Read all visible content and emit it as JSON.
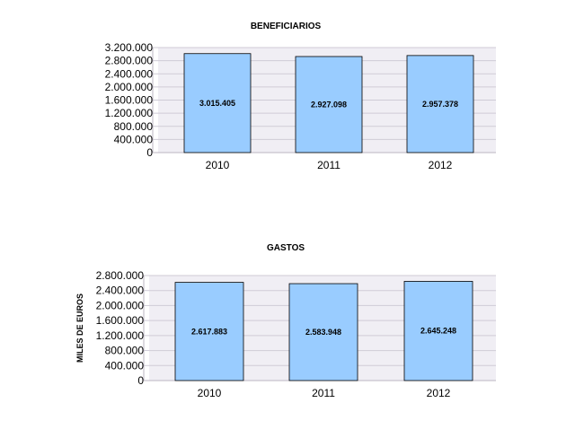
{
  "chart_data": [
    {
      "type": "bar",
      "title": "BENEFICIARIOS",
      "xlabel": "",
      "ylabel": "",
      "categories": [
        "2010",
        "2011",
        "2012"
      ],
      "values": [
        3015405,
        2927098,
        2957378
      ],
      "data_labels": [
        "3.015.405",
        "2.927.098",
        "2.957.378"
      ],
      "yticks": [
        "0",
        "400.000",
        "800.000",
        "1.200.000",
        "1.600.000",
        "2.000.000",
        "2.400.000",
        "2.800.000",
        "3.200.000"
      ],
      "ylim": [
        0,
        3200000
      ],
      "grid": true,
      "colors": {
        "bar": "#99ccff",
        "plot_bg": "#f0eef4",
        "grid": "#cfcbd6",
        "border": "#000000"
      }
    },
    {
      "type": "bar",
      "title": "GASTOS",
      "xlabel": "",
      "ylabel": "MILES DE EUROS",
      "categories": [
        "2010",
        "2011",
        "2012"
      ],
      "values": [
        2617883,
        2583948,
        2645248
      ],
      "data_labels": [
        "2.617.883",
        "2.583.948",
        "2.645.248"
      ],
      "yticks": [
        "0",
        "400.000",
        "800.000",
        "1.200.000",
        "1.600.000",
        "2.000.000",
        "2.400.000",
        "2.800.000"
      ],
      "ylim": [
        0,
        2800000
      ],
      "grid": true,
      "colors": {
        "bar": "#99ccff",
        "plot_bg": "#f0eef4",
        "grid": "#cfcbd6",
        "border": "#000000"
      }
    }
  ]
}
